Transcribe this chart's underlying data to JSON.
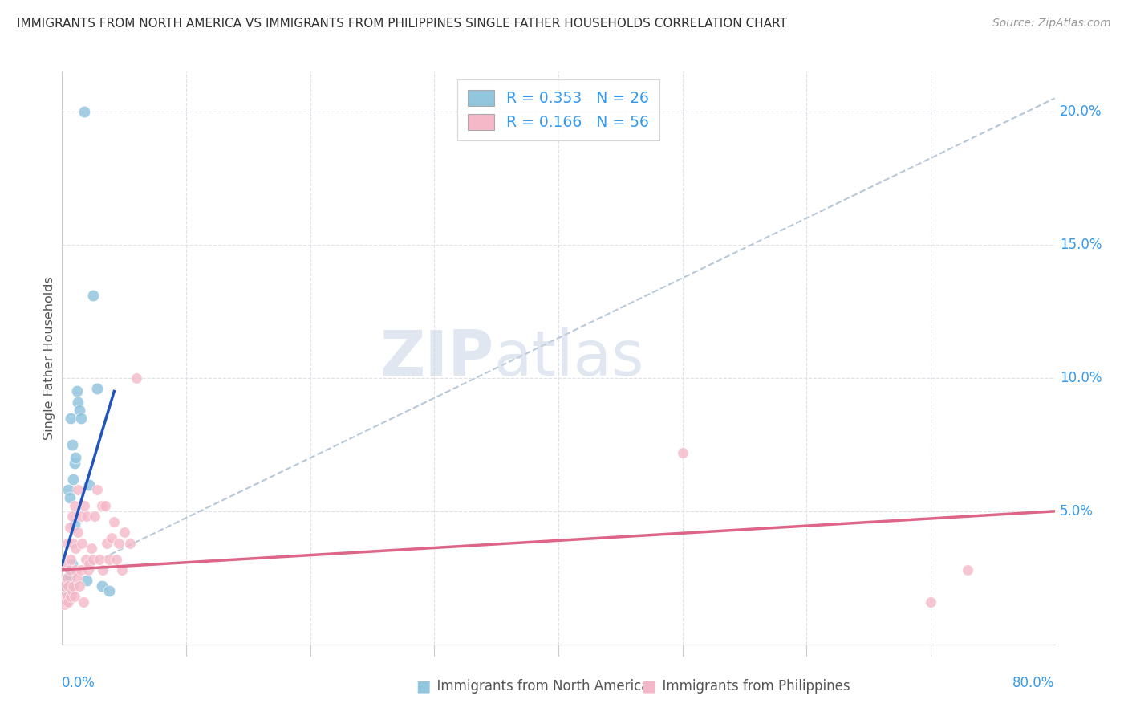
{
  "title": "IMMIGRANTS FROM NORTH AMERICA VS IMMIGRANTS FROM PHILIPPINES SINGLE FATHER HOUSEHOLDS CORRELATION CHART",
  "source": "Source: ZipAtlas.com",
  "ylabel": "Single Father Households",
  "blue_color": "#92c5de",
  "pink_color": "#f4b8c8",
  "blue_line_color": "#2255bb",
  "pink_line_color": "#dd6688",
  "dashed_line_color": "#b8c8d8",
  "watermark_zip": "ZIP",
  "watermark_atlas": "atlas",
  "na_scatter_x": [
    0.003,
    0.004,
    0.004,
    0.005,
    0.005,
    0.006,
    0.006,
    0.007,
    0.007,
    0.008,
    0.008,
    0.009,
    0.01,
    0.01,
    0.011,
    0.012,
    0.013,
    0.014,
    0.015,
    0.018,
    0.02,
    0.022,
    0.025,
    0.028,
    0.032,
    0.038
  ],
  "na_scatter_y": [
    0.02,
    0.018,
    0.025,
    0.022,
    0.058,
    0.026,
    0.055,
    0.028,
    0.085,
    0.03,
    0.075,
    0.062,
    0.045,
    0.068,
    0.07,
    0.095,
    0.091,
    0.088,
    0.085,
    0.2,
    0.024,
    0.06,
    0.131,
    0.096,
    0.022,
    0.02
  ],
  "ph_scatter_x": [
    0.001,
    0.002,
    0.002,
    0.003,
    0.003,
    0.004,
    0.004,
    0.004,
    0.005,
    0.005,
    0.006,
    0.006,
    0.007,
    0.007,
    0.008,
    0.008,
    0.009,
    0.009,
    0.01,
    0.01,
    0.011,
    0.011,
    0.012,
    0.013,
    0.013,
    0.014,
    0.015,
    0.015,
    0.016,
    0.017,
    0.018,
    0.019,
    0.02,
    0.021,
    0.022,
    0.024,
    0.025,
    0.026,
    0.028,
    0.03,
    0.032,
    0.033,
    0.035,
    0.036,
    0.038,
    0.04,
    0.042,
    0.044,
    0.046,
    0.048,
    0.05,
    0.055,
    0.06,
    0.5,
    0.7,
    0.73
  ],
  "ph_scatter_y": [
    0.018,
    0.015,
    0.022,
    0.016,
    0.03,
    0.018,
    0.025,
    0.038,
    0.016,
    0.022,
    0.028,
    0.044,
    0.018,
    0.032,
    0.02,
    0.048,
    0.022,
    0.038,
    0.018,
    0.052,
    0.028,
    0.036,
    0.025,
    0.042,
    0.058,
    0.022,
    0.028,
    0.048,
    0.038,
    0.016,
    0.052,
    0.032,
    0.048,
    0.028,
    0.03,
    0.036,
    0.032,
    0.048,
    0.058,
    0.032,
    0.052,
    0.028,
    0.052,
    0.038,
    0.032,
    0.04,
    0.046,
    0.032,
    0.038,
    0.028,
    0.042,
    0.038,
    0.1,
    0.072,
    0.016,
    0.028
  ],
  "na_line_x": [
    0.0,
    0.042
  ],
  "na_line_y_start": 0.03,
  "na_line_y_end": 0.095,
  "ph_line_x": [
    0.0,
    0.8
  ],
  "ph_line_y_start": 0.028,
  "ph_line_y_end": 0.05,
  "dash_line_x": [
    0.0,
    0.8
  ],
  "dash_line_y_start": 0.025,
  "dash_line_y_end": 0.205,
  "xlim": [
    0.0,
    0.8
  ],
  "ylim": [
    0.0,
    0.215
  ],
  "yticks": [
    0.05,
    0.1,
    0.15,
    0.2
  ],
  "ytick_labels": [
    "5.0%",
    "10.0%",
    "15.0%",
    "20.0%"
  ],
  "xtick_minor": [
    0.1,
    0.2,
    0.3,
    0.4,
    0.5,
    0.6,
    0.7
  ]
}
